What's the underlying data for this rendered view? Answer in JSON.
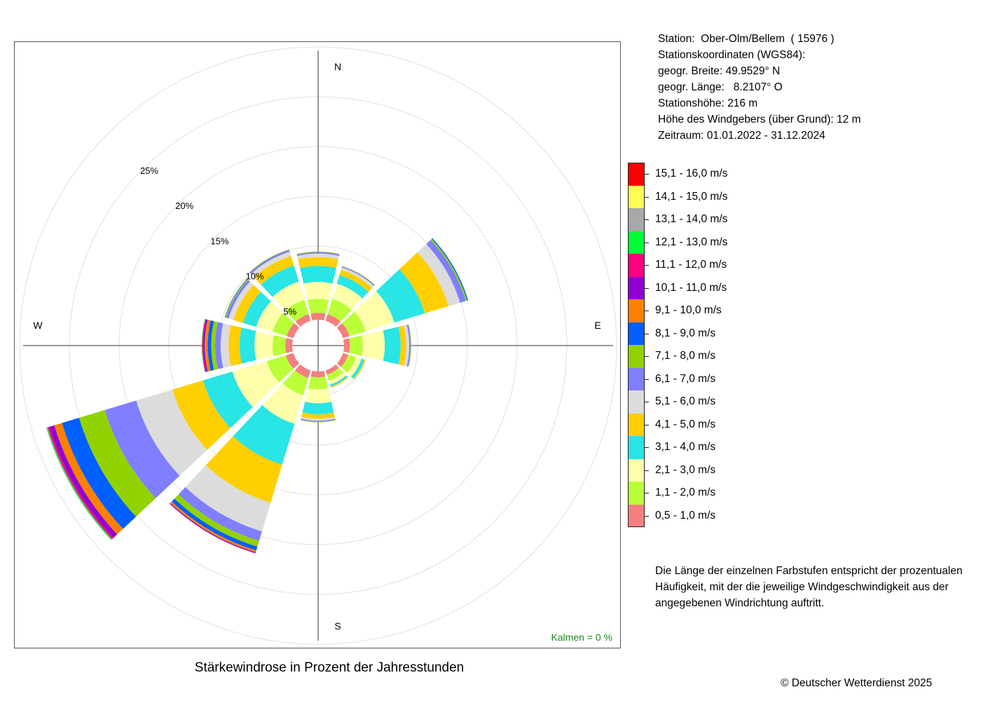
{
  "station_info": {
    "station": "Station:  Ober-Olm/Bellem  ( 15976 )",
    "coords_title": "Stationskoordinaten (WGS84):",
    "lat": "geogr. Breite: 49.9529° N",
    "lon": "geogr. Länge:   8.2107° O",
    "height": "Stationshöhe: 216 m",
    "anemometer": "Höhe des Windgebers (über Grund): 12 m",
    "period": "Zeitraum: 01.01.2022 - 31.12.2024"
  },
  "legend_note": "Die Länge der einzelnen Farbstufen entspricht der prozentualen Häufigkeit, mit der die jeweilige Windgeschwindigkeit aus der angegebenen Windrichtung auftritt.",
  "copyright": "© Deutscher Wetterdienst  2025",
  "chart_data": {
    "type": "windrose",
    "title": "Stärkewindrose in Prozent der Jahresstunden",
    "calm_label": "Kalmen  =  0 %",
    "compass": [
      "N",
      "E",
      "S",
      "W"
    ],
    "ring_labels": [
      "5%",
      "10%",
      "15%",
      "20%",
      "25%"
    ],
    "rings": [
      5,
      10,
      15,
      20,
      25,
      30
    ],
    "calm_radius": 2.6,
    "grid": true,
    "legend_position": "right",
    "classes": [
      {
        "label": "0,5 - 1,0 m/s",
        "color": "#f47f7f"
      },
      {
        "label": "1,1 - 2,0 m/s",
        "color": "#baff37"
      },
      {
        "label": "2,1 - 3,0 m/s",
        "color": "#ffffab"
      },
      {
        "label": "3,1 - 4,0 m/s",
        "color": "#29e5e5"
      },
      {
        "label": "4,1 - 5,0 m/s",
        "color": "#ffcf00"
      },
      {
        "label": "5,1 - 6,0 m/s",
        "color": "#dcdcdc"
      },
      {
        "label": "6,1 - 7,0 m/s",
        "color": "#7f7fff"
      },
      {
        "label": "7,1 - 8,0 m/s",
        "color": "#92d200"
      },
      {
        "label": "8,1 - 9,0 m/s",
        "color": "#005fff"
      },
      {
        "label": "9,1 - 10,0 m/s",
        "color": "#ff8000"
      },
      {
        "label": "10,1 - 11,0 m/s",
        "color": "#9100d2"
      },
      {
        "label": "11,1 - 12,0 m/s",
        "color": "#ff007f"
      },
      {
        "label": "12,1 - 13,0 m/s",
        "color": "#00ff37"
      },
      {
        "label": "13,1 - 14,0 m/s",
        "color": "#a8a8a8"
      },
      {
        "label": "14,1 - 15,0 m/s",
        "color": "#ffff55"
      },
      {
        "label": "15,1 - 16,0 m/s",
        "color": "#ff0000"
      }
    ],
    "directions": [
      {
        "dir": 0,
        "values": [
          0.7,
          1.4,
          1.7,
          1.6,
          0.9,
          0.35,
          0.15,
          0.05,
          0,
          0,
          0,
          0,
          0,
          0,
          0,
          0
        ]
      },
      {
        "dir": 30,
        "values": [
          0.7,
          1.6,
          1.6,
          0.9,
          0.55,
          0.25,
          0.1,
          0.05,
          0,
          0,
          0,
          0,
          0,
          0,
          0,
          0
        ]
      },
      {
        "dir": 60,
        "values": [
          0.7,
          1.7,
          3.0,
          3.2,
          2.5,
          1.2,
          0.6,
          0.15,
          0.1,
          0,
          0,
          0,
          0,
          0,
          0,
          0
        ]
      },
      {
        "dir": 90,
        "values": [
          0.6,
          1.3,
          2.2,
          1.6,
          0.55,
          0.3,
          0.15,
          0.05,
          0,
          0,
          0,
          0,
          0,
          0,
          0,
          0
        ]
      },
      {
        "dir": 120,
        "values": [
          0.55,
          0.85,
          0.55,
          0.3,
          0.1,
          0.05,
          0,
          0,
          0,
          0,
          0,
          0,
          0,
          0,
          0,
          0
        ]
      },
      {
        "dir": 150,
        "values": [
          0.45,
          0.65,
          0.4,
          0.2,
          0.1,
          0.05,
          0,
          0,
          0,
          0,
          0,
          0,
          0,
          0,
          0,
          0
        ]
      },
      {
        "dir": 180,
        "values": [
          0.6,
          1.2,
          1.4,
          1.1,
          0.45,
          0.2,
          0.1,
          0.05,
          0,
          0,
          0,
          0,
          0,
          0,
          0,
          0
        ]
      },
      {
        "dir": 210,
        "values": [
          0.8,
          1.8,
          3.0,
          4.3,
          4.0,
          3.0,
          1.0,
          0.6,
          0.4,
          0.2,
          0.1,
          0,
          0,
          0,
          0,
          0
        ]
      },
      {
        "dir": 240,
        "values": [
          0.8,
          2.0,
          3.6,
          3.1,
          3.2,
          3.8,
          3.3,
          2.7,
          1.8,
          0.8,
          0.5,
          0.2,
          0.1,
          0.05,
          0,
          0
        ]
      },
      {
        "dir": 270,
        "values": [
          0.7,
          1.3,
          1.8,
          1.5,
          1.1,
          0.8,
          0.55,
          0.4,
          0.35,
          0.3,
          0.15,
          0.1,
          0.05,
          0,
          0,
          0
        ]
      },
      {
        "dir": 300,
        "values": [
          0.7,
          1.5,
          1.7,
          1.4,
          1.0,
          0.5,
          0.25,
          0.1,
          0.05,
          0,
          0,
          0,
          0,
          0,
          0,
          0
        ]
      },
      {
        "dir": 330,
        "values": [
          0.7,
          1.5,
          1.9,
          1.7,
          1.0,
          0.45,
          0.2,
          0.05,
          0,
          0,
          0,
          0,
          0,
          0,
          0,
          0
        ]
      }
    ]
  }
}
